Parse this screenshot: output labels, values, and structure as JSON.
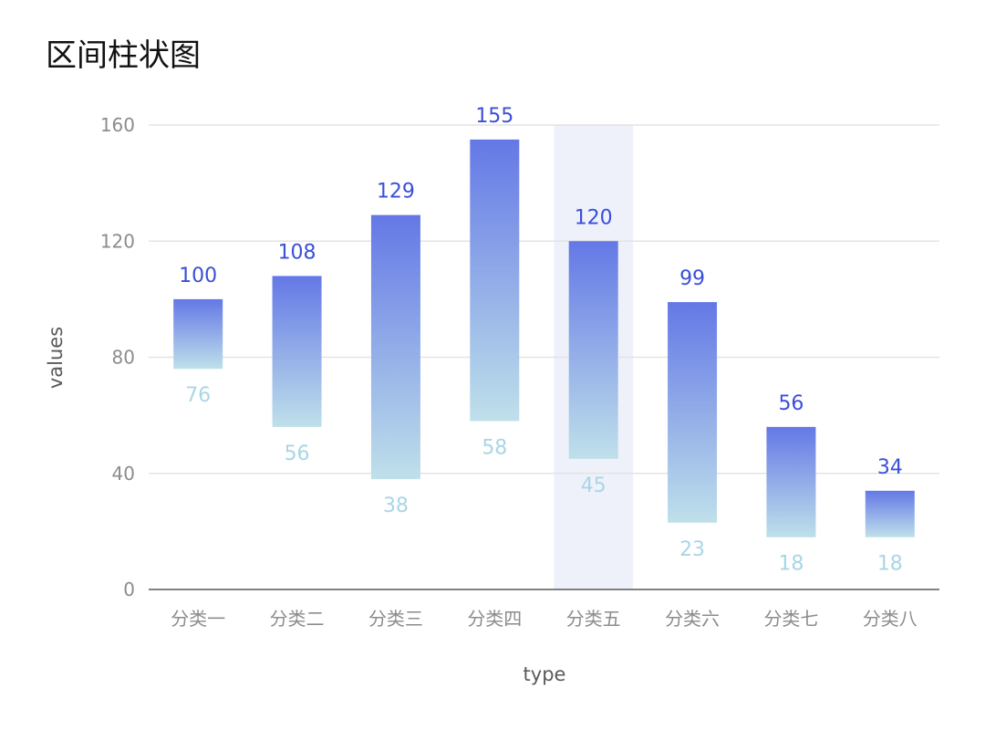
{
  "title": "区间柱状图",
  "colors": {
    "bar_top": "#6478e6",
    "bar_bottom": "#bfe0ea",
    "high_label": "#3a4fd8",
    "low_label": "#a9d6e5",
    "grid": "#e3e3e3",
    "axis": "#595959",
    "highlight": "#eef1fa"
  },
  "chart_data": {
    "type": "bar",
    "subtype": "range",
    "title": "区间柱状图",
    "xlabel": "type",
    "ylabel": "values",
    "ylim": [
      0,
      160
    ],
    "yticks": [
      0,
      40,
      80,
      120,
      160
    ],
    "grid": true,
    "highlighted_category": "分类五",
    "categories": [
      "分类一",
      "分类二",
      "分类三",
      "分类四",
      "分类五",
      "分类六",
      "分类七",
      "分类八"
    ],
    "series": [
      {
        "ranges": [
          [
            76,
            100
          ],
          [
            56,
            108
          ],
          [
            38,
            129
          ],
          [
            58,
            155
          ],
          [
            45,
            120
          ],
          [
            23,
            99
          ],
          [
            18,
            56
          ],
          [
            18,
            34
          ]
        ]
      }
    ]
  }
}
